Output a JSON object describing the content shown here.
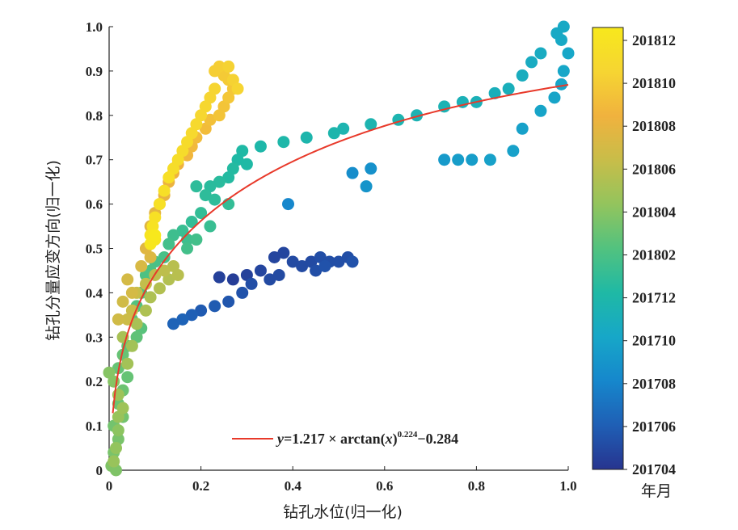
{
  "chart_data": {
    "type": "scatter",
    "xlabel": "钻孔水位(归一化)",
    "ylabel": "钻孔分量应变方向(归一化)",
    "xlim": [
      0,
      1
    ],
    "ylim": [
      0,
      1
    ],
    "x_ticks": [
      "0",
      "0.2",
      "0.4",
      "0.6",
      "0.8",
      "1.0"
    ],
    "y_ticks": [
      "0",
      "0.1",
      "0.2",
      "0.3",
      "0.4",
      "0.5",
      "0.6",
      "0.7",
      "0.8",
      "0.9",
      "1.0"
    ],
    "grid": false,
    "colorbar": {
      "title": "年月",
      "ticks": [
        "201812",
        "201810",
        "201808",
        "201806",
        "201804",
        "201802",
        "201712",
        "201710",
        "201708",
        "201706",
        "201704"
      ],
      "colormap": [
        "#27348f",
        "#1f5fb5",
        "#1687cc",
        "#17a7c8",
        "#1fb9a5",
        "#52c27f",
        "#93c45d",
        "#c8bd49",
        "#f0b23e",
        "#f6d532",
        "#f7e81c"
      ]
    },
    "fit": {
      "label": "y=1.217 × arctan(x)0.224−0.284",
      "equation_parts": {
        "y": "y",
        "main": "=1.217 × arctan(",
        "x": "x",
        "close": ")",
        "exp": "0.224",
        "tail": "−0.284"
      },
      "a": 1.217,
      "b": 0.224,
      "c": -0.284,
      "color": "#e8392a",
      "legend_position": "bottom-center"
    },
    "points": [
      {
        "x": 0.27,
        "y": 0.43,
        "t": 0.02
      },
      {
        "x": 0.24,
        "y": 0.435,
        "t": 0.03
      },
      {
        "x": 0.3,
        "y": 0.44,
        "t": 0.03
      },
      {
        "x": 0.33,
        "y": 0.45,
        "t": 0.04
      },
      {
        "x": 0.36,
        "y": 0.48,
        "t": 0.04
      },
      {
        "x": 0.38,
        "y": 0.49,
        "t": 0.04
      },
      {
        "x": 0.4,
        "y": 0.47,
        "t": 0.05
      },
      {
        "x": 0.42,
        "y": 0.46,
        "t": 0.05
      },
      {
        "x": 0.44,
        "y": 0.47,
        "t": 0.05
      },
      {
        "x": 0.46,
        "y": 0.48,
        "t": 0.06
      },
      {
        "x": 0.48,
        "y": 0.47,
        "t": 0.06
      },
      {
        "x": 0.5,
        "y": 0.47,
        "t": 0.06
      },
      {
        "x": 0.52,
        "y": 0.48,
        "t": 0.06
      },
      {
        "x": 0.53,
        "y": 0.47,
        "t": 0.07
      },
      {
        "x": 0.45,
        "y": 0.45,
        "t": 0.06
      },
      {
        "x": 0.47,
        "y": 0.46,
        "t": 0.07
      },
      {
        "x": 0.35,
        "y": 0.43,
        "t": 0.05
      },
      {
        "x": 0.37,
        "y": 0.44,
        "t": 0.05
      },
      {
        "x": 0.31,
        "y": 0.42,
        "t": 0.06
      },
      {
        "x": 0.29,
        "y": 0.4,
        "t": 0.07
      },
      {
        "x": 0.26,
        "y": 0.38,
        "t": 0.08
      },
      {
        "x": 0.23,
        "y": 0.37,
        "t": 0.09
      },
      {
        "x": 0.2,
        "y": 0.36,
        "t": 0.09
      },
      {
        "x": 0.18,
        "y": 0.35,
        "t": 0.1
      },
      {
        "x": 0.14,
        "y": 0.33,
        "t": 0.11
      },
      {
        "x": 0.16,
        "y": 0.34,
        "t": 0.11
      },
      {
        "x": 0.39,
        "y": 0.6,
        "t": 0.2
      },
      {
        "x": 0.53,
        "y": 0.67,
        "t": 0.22
      },
      {
        "x": 0.57,
        "y": 0.68,
        "t": 0.23
      },
      {
        "x": 0.56,
        "y": 0.64,
        "t": 0.24
      },
      {
        "x": 0.73,
        "y": 0.7,
        "t": 0.26
      },
      {
        "x": 0.76,
        "y": 0.7,
        "t": 0.27
      },
      {
        "x": 0.79,
        "y": 0.7,
        "t": 0.27
      },
      {
        "x": 0.83,
        "y": 0.7,
        "t": 0.28
      },
      {
        "x": 0.88,
        "y": 0.72,
        "t": 0.28
      },
      {
        "x": 0.9,
        "y": 0.77,
        "t": 0.28
      },
      {
        "x": 0.94,
        "y": 0.81,
        "t": 0.29
      },
      {
        "x": 0.97,
        "y": 0.84,
        "t": 0.29
      },
      {
        "x": 0.985,
        "y": 0.87,
        "t": 0.29
      },
      {
        "x": 0.99,
        "y": 0.9,
        "t": 0.3
      },
      {
        "x": 1.0,
        "y": 0.94,
        "t": 0.3
      },
      {
        "x": 0.985,
        "y": 0.97,
        "t": 0.31
      },
      {
        "x": 0.99,
        "y": 1.0,
        "t": 0.31
      },
      {
        "x": 0.975,
        "y": 0.985,
        "t": 0.31
      },
      {
        "x": 0.94,
        "y": 0.94,
        "t": 0.32
      },
      {
        "x": 0.92,
        "y": 0.92,
        "t": 0.32
      },
      {
        "x": 0.9,
        "y": 0.89,
        "t": 0.33
      },
      {
        "x": 0.87,
        "y": 0.86,
        "t": 0.34
      },
      {
        "x": 0.84,
        "y": 0.85,
        "t": 0.34
      },
      {
        "x": 0.8,
        "y": 0.83,
        "t": 0.35
      },
      {
        "x": 0.77,
        "y": 0.83,
        "t": 0.35
      },
      {
        "x": 0.73,
        "y": 0.82,
        "t": 0.36
      },
      {
        "x": 0.67,
        "y": 0.8,
        "t": 0.36
      },
      {
        "x": 0.63,
        "y": 0.79,
        "t": 0.37
      },
      {
        "x": 0.57,
        "y": 0.78,
        "t": 0.37
      },
      {
        "x": 0.51,
        "y": 0.77,
        "t": 0.37
      },
      {
        "x": 0.49,
        "y": 0.76,
        "t": 0.38
      },
      {
        "x": 0.43,
        "y": 0.75,
        "t": 0.38
      },
      {
        "x": 0.38,
        "y": 0.74,
        "t": 0.39
      },
      {
        "x": 0.33,
        "y": 0.73,
        "t": 0.39
      },
      {
        "x": 0.29,
        "y": 0.72,
        "t": 0.4
      },
      {
        "x": 0.28,
        "y": 0.7,
        "t": 0.4
      },
      {
        "x": 0.3,
        "y": 0.69,
        "t": 0.4
      },
      {
        "x": 0.27,
        "y": 0.68,
        "t": 0.41
      },
      {
        "x": 0.26,
        "y": 0.66,
        "t": 0.41
      },
      {
        "x": 0.24,
        "y": 0.65,
        "t": 0.42
      },
      {
        "x": 0.22,
        "y": 0.64,
        "t": 0.42
      },
      {
        "x": 0.19,
        "y": 0.64,
        "t": 0.43
      },
      {
        "x": 0.21,
        "y": 0.62,
        "t": 0.43
      },
      {
        "x": 0.23,
        "y": 0.61,
        "t": 0.43
      },
      {
        "x": 0.26,
        "y": 0.6,
        "t": 0.44
      },
      {
        "x": 0.2,
        "y": 0.58,
        "t": 0.44
      },
      {
        "x": 0.18,
        "y": 0.56,
        "t": 0.44
      },
      {
        "x": 0.22,
        "y": 0.55,
        "t": 0.45
      },
      {
        "x": 0.16,
        "y": 0.54,
        "t": 0.45
      },
      {
        "x": 0.14,
        "y": 0.53,
        "t": 0.46
      },
      {
        "x": 0.17,
        "y": 0.52,
        "t": 0.46
      },
      {
        "x": 0.17,
        "y": 0.5,
        "t": 0.47
      },
      {
        "x": 0.13,
        "y": 0.51,
        "t": 0.47
      },
      {
        "x": 0.19,
        "y": 0.52,
        "t": 0.47
      },
      {
        "x": 0.12,
        "y": 0.48,
        "t": 0.48
      },
      {
        "x": 0.1,
        "y": 0.47,
        "t": 0.48
      },
      {
        "x": 0.09,
        "y": 0.45,
        "t": 0.49
      },
      {
        "x": 0.08,
        "y": 0.44,
        "t": 0.49
      },
      {
        "x": 0.07,
        "y": 0.4,
        "t": 0.5
      },
      {
        "x": 0.06,
        "y": 0.37,
        "t": 0.5
      },
      {
        "x": 0.05,
        "y": 0.34,
        "t": 0.51
      },
      {
        "x": 0.07,
        "y": 0.32,
        "t": 0.51
      },
      {
        "x": 0.06,
        "y": 0.3,
        "t": 0.52
      },
      {
        "x": 0.04,
        "y": 0.28,
        "t": 0.52
      },
      {
        "x": 0.03,
        "y": 0.26,
        "t": 0.53
      },
      {
        "x": 0.02,
        "y": 0.23,
        "t": 0.53
      },
      {
        "x": 0.04,
        "y": 0.21,
        "t": 0.53
      },
      {
        "x": 0.03,
        "y": 0.18,
        "t": 0.54
      },
      {
        "x": 0.02,
        "y": 0.15,
        "t": 0.54
      },
      {
        "x": 0.03,
        "y": 0.12,
        "t": 0.55
      },
      {
        "x": 0.01,
        "y": 0.1,
        "t": 0.55
      },
      {
        "x": 0.02,
        "y": 0.07,
        "t": 0.56
      },
      {
        "x": 0.01,
        "y": 0.04,
        "t": 0.56
      },
      {
        "x": 0.005,
        "y": 0.01,
        "t": 0.57
      },
      {
        "x": 0.015,
        "y": 0.0,
        "t": 0.57
      },
      {
        "x": 0.0,
        "y": 0.22,
        "t": 0.58
      },
      {
        "x": 0.01,
        "y": 0.2,
        "t": 0.58
      },
      {
        "x": 0.02,
        "y": 0.09,
        "t": 0.59
      },
      {
        "x": 0.015,
        "y": 0.05,
        "t": 0.6
      },
      {
        "x": 0.01,
        "y": 0.02,
        "t": 0.61
      },
      {
        "x": 0.02,
        "y": 0.12,
        "t": 0.61
      },
      {
        "x": 0.03,
        "y": 0.14,
        "t": 0.62
      },
      {
        "x": 0.02,
        "y": 0.17,
        "t": 0.62
      },
      {
        "x": 0.04,
        "y": 0.24,
        "t": 0.63
      },
      {
        "x": 0.05,
        "y": 0.28,
        "t": 0.63
      },
      {
        "x": 0.03,
        "y": 0.3,
        "t": 0.64
      },
      {
        "x": 0.06,
        "y": 0.33,
        "t": 0.64
      },
      {
        "x": 0.08,
        "y": 0.36,
        "t": 0.65
      },
      {
        "x": 0.09,
        "y": 0.39,
        "t": 0.65
      },
      {
        "x": 0.11,
        "y": 0.41,
        "t": 0.66
      },
      {
        "x": 0.13,
        "y": 0.43,
        "t": 0.66
      },
      {
        "x": 0.15,
        "y": 0.44,
        "t": 0.67
      },
      {
        "x": 0.14,
        "y": 0.46,
        "t": 0.67
      },
      {
        "x": 0.12,
        "y": 0.45,
        "t": 0.68
      },
      {
        "x": 0.1,
        "y": 0.44,
        "t": 0.68
      },
      {
        "x": 0.08,
        "y": 0.42,
        "t": 0.69
      },
      {
        "x": 0.06,
        "y": 0.4,
        "t": 0.7
      },
      {
        "x": 0.05,
        "y": 0.36,
        "t": 0.7
      },
      {
        "x": 0.04,
        "y": 0.34,
        "t": 0.71
      },
      {
        "x": 0.02,
        "y": 0.34,
        "t": 0.72
      },
      {
        "x": 0.03,
        "y": 0.38,
        "t": 0.72
      },
      {
        "x": 0.05,
        "y": 0.4,
        "t": 0.73
      },
      {
        "x": 0.04,
        "y": 0.43,
        "t": 0.73
      },
      {
        "x": 0.07,
        "y": 0.46,
        "t": 0.74
      },
      {
        "x": 0.09,
        "y": 0.48,
        "t": 0.75
      },
      {
        "x": 0.08,
        "y": 0.5,
        "t": 0.76
      },
      {
        "x": 0.09,
        "y": 0.55,
        "t": 0.76
      },
      {
        "x": 0.1,
        "y": 0.58,
        "t": 0.77
      },
      {
        "x": 0.11,
        "y": 0.6,
        "t": 0.78
      },
      {
        "x": 0.12,
        "y": 0.62,
        "t": 0.78
      },
      {
        "x": 0.13,
        "y": 0.65,
        "t": 0.79
      },
      {
        "x": 0.14,
        "y": 0.67,
        "t": 0.8
      },
      {
        "x": 0.15,
        "y": 0.69,
        "t": 0.8
      },
      {
        "x": 0.17,
        "y": 0.71,
        "t": 0.81
      },
      {
        "x": 0.18,
        "y": 0.73,
        "t": 0.82
      },
      {
        "x": 0.19,
        "y": 0.75,
        "t": 0.83
      },
      {
        "x": 0.21,
        "y": 0.77,
        "t": 0.83
      },
      {
        "x": 0.22,
        "y": 0.79,
        "t": 0.84
      },
      {
        "x": 0.24,
        "y": 0.8,
        "t": 0.85
      },
      {
        "x": 0.25,
        "y": 0.82,
        "t": 0.85
      },
      {
        "x": 0.26,
        "y": 0.84,
        "t": 0.86
      },
      {
        "x": 0.27,
        "y": 0.86,
        "t": 0.86
      },
      {
        "x": 0.26,
        "y": 0.88,
        "t": 0.87
      },
      {
        "x": 0.25,
        "y": 0.89,
        "t": 0.87
      },
      {
        "x": 0.23,
        "y": 0.9,
        "t": 0.88
      },
      {
        "x": 0.24,
        "y": 0.91,
        "t": 0.88
      },
      {
        "x": 0.26,
        "y": 0.91,
        "t": 0.89
      },
      {
        "x": 0.27,
        "y": 0.88,
        "t": 0.89
      },
      {
        "x": 0.28,
        "y": 0.86,
        "t": 0.9
      },
      {
        "x": 0.23,
        "y": 0.86,
        "t": 0.9
      },
      {
        "x": 0.22,
        "y": 0.84,
        "t": 0.9
      },
      {
        "x": 0.21,
        "y": 0.82,
        "t": 0.91
      },
      {
        "x": 0.2,
        "y": 0.8,
        "t": 0.91
      },
      {
        "x": 0.19,
        "y": 0.78,
        "t": 0.92
      },
      {
        "x": 0.18,
        "y": 0.76,
        "t": 0.92
      },
      {
        "x": 0.17,
        "y": 0.74,
        "t": 0.93
      },
      {
        "x": 0.16,
        "y": 0.72,
        "t": 0.93
      },
      {
        "x": 0.15,
        "y": 0.7,
        "t": 0.94
      },
      {
        "x": 0.14,
        "y": 0.68,
        "t": 0.94
      },
      {
        "x": 0.13,
        "y": 0.66,
        "t": 0.95
      },
      {
        "x": 0.12,
        "y": 0.63,
        "t": 0.95
      },
      {
        "x": 0.11,
        "y": 0.6,
        "t": 0.96
      },
      {
        "x": 0.1,
        "y": 0.57,
        "t": 0.96
      },
      {
        "x": 0.095,
        "y": 0.55,
        "t": 0.97
      },
      {
        "x": 0.09,
        "y": 0.53,
        "t": 0.98
      },
      {
        "x": 0.1,
        "y": 0.52,
        "t": 0.98
      },
      {
        "x": 0.09,
        "y": 0.51,
        "t": 0.99
      },
      {
        "x": 0.1,
        "y": 0.53,
        "t": 1.0
      }
    ]
  }
}
